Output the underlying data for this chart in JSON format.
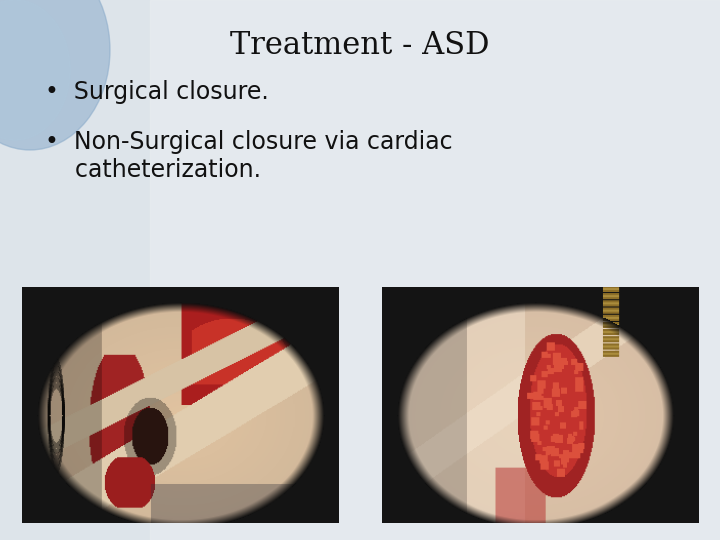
{
  "title": "Treatment - ASD",
  "title_fontsize": 22,
  "title_color": "#111111",
  "bullet1": "Surgical closure.",
  "bullet2": "Non-Surgical closure via cardiac\n    catheterization.",
  "bullet_fontsize": 17,
  "bullet_color": "#111111",
  "bg_color": "#e8ecf0",
  "bg_circle_color": "#9bbdd4",
  "panel_bg": "#111111",
  "dot_color_1": "#4499bb",
  "dot_color_2": "#6699bb"
}
